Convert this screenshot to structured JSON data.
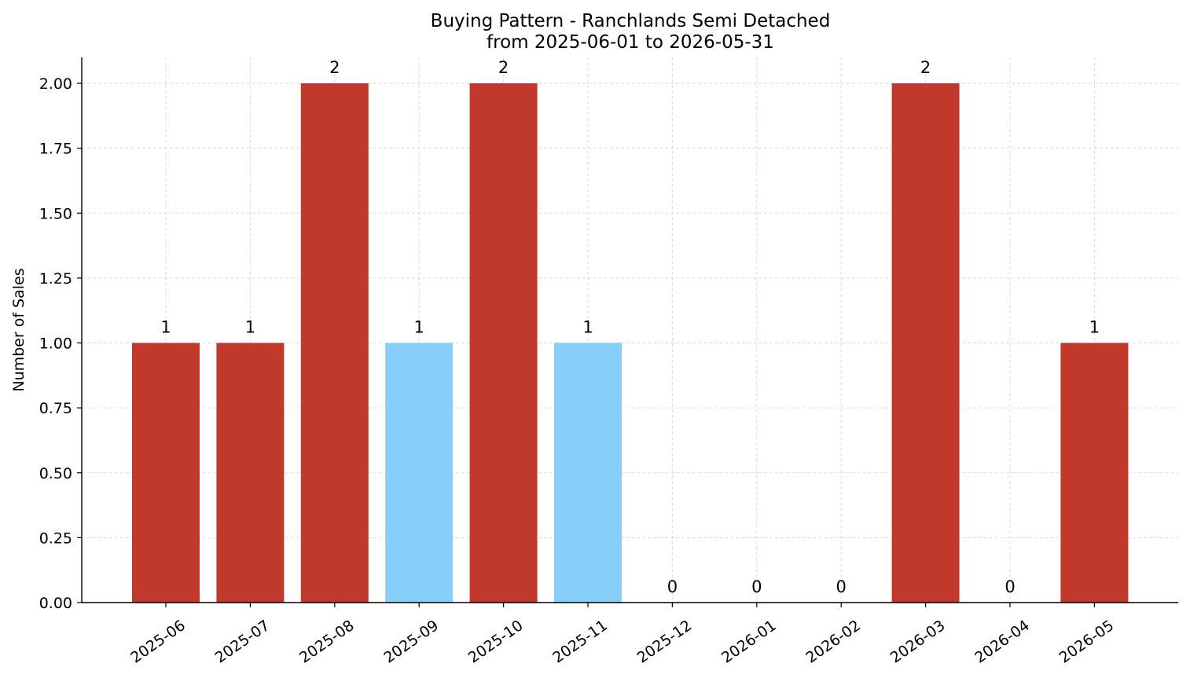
{
  "chart_data": {
    "type": "bar",
    "title": "Buying Pattern - Ranchlands Semi Detached",
    "subtitle": "from 2025-06-01 to 2026-05-31",
    "xlabel": "",
    "ylabel": "Number of Sales",
    "categories": [
      "2025-06",
      "2025-07",
      "2025-08",
      "2025-09",
      "2025-10",
      "2025-11",
      "2025-12",
      "2026-01",
      "2026-02",
      "2026-03",
      "2026-04",
      "2026-05"
    ],
    "values": [
      1,
      1,
      2,
      1,
      2,
      1,
      0,
      0,
      0,
      2,
      0,
      1
    ],
    "data_labels": [
      "1",
      "1",
      "2",
      "1",
      "2",
      "1",
      "0",
      "0",
      "0",
      "2",
      "0",
      "1"
    ],
    "bar_colors": [
      "#c0392b",
      "#c0392b",
      "#c0392b",
      "#87cefa",
      "#c0392b",
      "#87cefa",
      "#c0392b",
      "#c0392b",
      "#c0392b",
      "#c0392b",
      "#c0392b",
      "#c0392b"
    ],
    "ylim": [
      0,
      2.1
    ],
    "yticks": [
      0,
      0.25,
      0.5,
      0.75,
      1.0,
      1.25,
      1.5,
      1.75,
      2.0
    ],
    "ytick_labels": [
      "0.00",
      "0.25",
      "0.50",
      "0.75",
      "1.00",
      "1.25",
      "1.50",
      "1.75",
      "2.00"
    ],
    "grid": true,
    "grid_color": "#d3d3d3",
    "legend": "none"
  }
}
